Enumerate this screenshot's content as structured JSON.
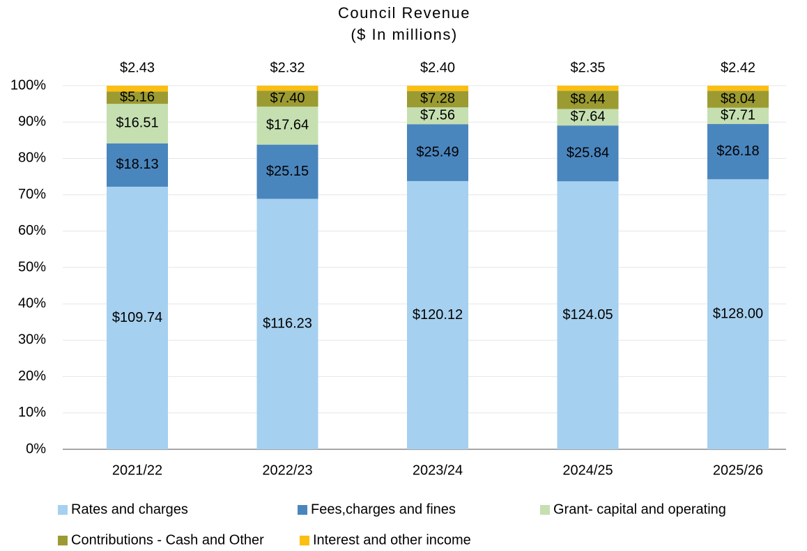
{
  "chart_data": {
    "type": "bar",
    "stacking": "percent",
    "title": "Council Revenue",
    "subtitle": "($ In millions)",
    "categories": [
      "2021/22",
      "2022/23",
      "2023/24",
      "2024/25",
      "2025/26"
    ],
    "series": [
      {
        "name": "Rates and charges",
        "color": "#a6d0ef",
        "values": [
          109.74,
          116.23,
          120.12,
          124.05,
          128.0
        ],
        "value_labels": [
          "$109.74",
          "$116.23",
          "$120.12",
          "$124.05",
          "$128.00"
        ]
      },
      {
        "name": "Fees,charges and fines",
        "color": "#4a86be",
        "values": [
          18.13,
          25.15,
          25.49,
          25.84,
          26.18
        ],
        "value_labels": [
          "$18.13",
          "$25.15",
          "$25.49",
          "$25.84",
          "$26.18"
        ]
      },
      {
        "name": "Grant- capital and operating",
        "color": "#c5dfb1",
        "values": [
          16.51,
          17.64,
          7.56,
          7.64,
          7.71
        ],
        "value_labels": [
          "$16.51",
          "$17.64",
          "$7.56",
          "$7.64",
          "$7.71"
        ]
      },
      {
        "name": "Contributions - Cash and Other",
        "color": "#9c9b32",
        "values": [
          5.16,
          7.4,
          7.28,
          8.44,
          8.04
        ],
        "value_labels": [
          "$5.16",
          "$7.40",
          "$7.28",
          "$8.44",
          "$8.04"
        ]
      },
      {
        "name": "Interest and other income",
        "color": "#fbbe12",
        "values": [
          2.43,
          2.32,
          2.4,
          2.35,
          2.42
        ],
        "value_labels": [
          "$2.43",
          "$2.32",
          "$2.40",
          "$2.35",
          "$2.42"
        ]
      }
    ],
    "ylim": [
      0,
      100
    ],
    "yticks": [
      {
        "value": 0,
        "label": "0%"
      },
      {
        "value": 10,
        "label": "10%"
      },
      {
        "value": 20,
        "label": "20%"
      },
      {
        "value": 30,
        "label": "30%"
      },
      {
        "value": 40,
        "label": "40%"
      },
      {
        "value": 50,
        "label": "50%"
      },
      {
        "value": 60,
        "label": "60%"
      },
      {
        "value": 70,
        "label": "70%"
      },
      {
        "value": 80,
        "label": "80%"
      },
      {
        "value": 90,
        "label": "90%"
      },
      {
        "value": 100,
        "label": "100%"
      }
    ],
    "grid": true,
    "legend": "bottom"
  }
}
